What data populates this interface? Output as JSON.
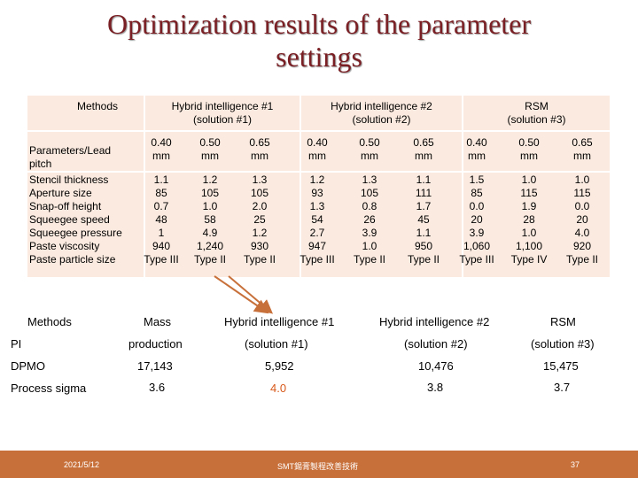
{
  "title": {
    "line1": "Optimization results of the parameter",
    "line2": "settings"
  },
  "table1": {
    "methods_label": "Methods",
    "groups": [
      {
        "line1": "Hybrid intelligence #1",
        "line2": "(solution #1)"
      },
      {
        "line1": "Hybrid intelligence #2",
        "line2": "(solution #2)"
      },
      {
        "line1": "RSM",
        "line2": "(solution #3)"
      }
    ],
    "params_header": [
      "Parameters/Lead",
      "pitch"
    ],
    "params": [
      "Stencil thickness",
      "Aperture size",
      "Snap-off height",
      "Squeegee speed",
      "Squeegee pressure",
      "Paste viscosity",
      "Paste particle size"
    ],
    "pitches": [
      "0.40",
      "0.50",
      "0.65",
      "0.40",
      "0.50",
      "0.65",
      "0.40",
      "0.50",
      "0.65"
    ],
    "unit": "mm",
    "columns": [
      [
        "1.1",
        "85",
        "0.7",
        "48",
        "1",
        "940",
        "Type III"
      ],
      [
        "1.2",
        "105",
        "1.0",
        "58",
        "4.9",
        "1,240",
        "Type II"
      ],
      [
        "1.3",
        "105",
        "2.0",
        "25",
        "1.2",
        "930",
        "Type II"
      ],
      [
        "1.2",
        "93",
        "1.3",
        "54",
        "2.7",
        "947",
        "Type III"
      ],
      [
        "1.3",
        "105",
        "0.8",
        "26",
        "3.9",
        "1.0",
        "Type II"
      ],
      [
        "1.1",
        "111",
        "1.7",
        "45",
        "1.1",
        "950",
        "Type II"
      ],
      [
        "1.5",
        "85",
        "0.0",
        "20",
        "3.9",
        "1,060",
        "Type III"
      ],
      [
        "1.0",
        "115",
        "1.9",
        "28",
        "1.0",
        "1,100",
        "Type IV"
      ],
      [
        "1.0",
        "115",
        "0.0",
        "20",
        "4.0",
        "920",
        "Type II"
      ]
    ]
  },
  "table2": {
    "methods_label": "Methods",
    "pi_label": "PI",
    "mass": "Mass",
    "production": "production",
    "hi1": "Hybrid intelligence #1",
    "sol1": "(solution #1)",
    "hi2": "Hybrid intelligence #2",
    "sol2": "(solution #2)",
    "rsm": "RSM",
    "sol3": "(solution #3)",
    "rows": [
      {
        "label": "DPMO",
        "values": [
          "17,143",
          "5,952",
          "10,476",
          "15,475"
        ]
      },
      {
        "label": "Process sigma",
        "values": [
          "3.6",
          "4.0",
          "3.8",
          "3.7"
        ]
      }
    ]
  },
  "footer": {
    "date": "2021/5/12",
    "center": "SMT錫膏製程改善技術",
    "page": "37"
  },
  "colors": {
    "title": "#7a1f24",
    "table_bg": "#fbeadf",
    "highlight": "#d8591a",
    "footer": "#c8703a"
  }
}
